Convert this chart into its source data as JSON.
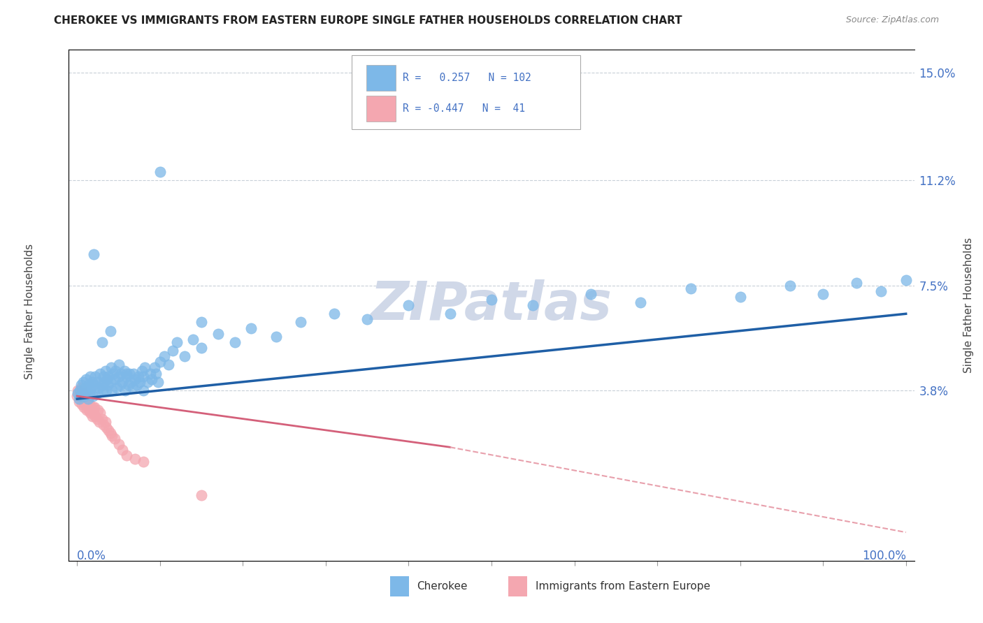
{
  "title": "CHEROKEE VS IMMIGRANTS FROM EASTERN EUROPE SINGLE FATHER HOUSEHOLDS CORRELATION CHART",
  "source": "Source: ZipAtlas.com",
  "ylabel": "Single Father Households",
  "ytick_vals": [
    0.0,
    0.038,
    0.075,
    0.112,
    0.15
  ],
  "ytick_labels": [
    "",
    "3.8%",
    "7.5%",
    "11.2%",
    "15.0%"
  ],
  "cherokee_color": "#7db8e8",
  "immigrants_color": "#f4a7b0",
  "cherokee_line_color": "#1f5fa6",
  "immigrants_line_solid_color": "#d4607a",
  "immigrants_line_dashed_color": "#e8a0ac",
  "label_color": "#4472c4",
  "watermark_color": "#d0d8e8",
  "cherokee_x": [
    0.001,
    0.002,
    0.003,
    0.004,
    0.005,
    0.006,
    0.007,
    0.008,
    0.009,
    0.01,
    0.011,
    0.012,
    0.013,
    0.014,
    0.015,
    0.016,
    0.017,
    0.018,
    0.019,
    0.02,
    0.022,
    0.024,
    0.025,
    0.026,
    0.028,
    0.03,
    0.031,
    0.032,
    0.033,
    0.034,
    0.035,
    0.036,
    0.037,
    0.038,
    0.04,
    0.041,
    0.042,
    0.044,
    0.045,
    0.046,
    0.048,
    0.05,
    0.052,
    0.053,
    0.055,
    0.057,
    0.058,
    0.06,
    0.062,
    0.063,
    0.065,
    0.067,
    0.068,
    0.07,
    0.072,
    0.074,
    0.076,
    0.078,
    0.08,
    0.082,
    0.085,
    0.088,
    0.09,
    0.093,
    0.095,
    0.098,
    0.1,
    0.105,
    0.11,
    0.115,
    0.12,
    0.13,
    0.14,
    0.15,
    0.17,
    0.19,
    0.21,
    0.24,
    0.27,
    0.31,
    0.35,
    0.4,
    0.45,
    0.5,
    0.55,
    0.62,
    0.68,
    0.74,
    0.8,
    0.86,
    0.9,
    0.94,
    0.97,
    1.0,
    0.02,
    0.03,
    0.04,
    0.05,
    0.06,
    0.08,
    0.1,
    0.15
  ],
  "cherokee_y": [
    0.037,
    0.035,
    0.038,
    0.036,
    0.04,
    0.037,
    0.041,
    0.038,
    0.036,
    0.039,
    0.042,
    0.038,
    0.035,
    0.04,
    0.037,
    0.043,
    0.039,
    0.041,
    0.036,
    0.04,
    0.043,
    0.037,
    0.041,
    0.039,
    0.044,
    0.04,
    0.038,
    0.043,
    0.041,
    0.045,
    0.038,
    0.042,
    0.04,
    0.043,
    0.041,
    0.046,
    0.038,
    0.044,
    0.042,
    0.045,
    0.039,
    0.043,
    0.04,
    0.044,
    0.041,
    0.045,
    0.038,
    0.043,
    0.04,
    0.044,
    0.041,
    0.039,
    0.044,
    0.042,
    0.04,
    0.043,
    0.041,
    0.045,
    0.043,
    0.046,
    0.041,
    0.044,
    0.042,
    0.046,
    0.044,
    0.041,
    0.048,
    0.05,
    0.047,
    0.052,
    0.055,
    0.05,
    0.056,
    0.053,
    0.058,
    0.055,
    0.06,
    0.057,
    0.062,
    0.065,
    0.063,
    0.068,
    0.065,
    0.07,
    0.068,
    0.072,
    0.069,
    0.074,
    0.071,
    0.075,
    0.072,
    0.076,
    0.073,
    0.077,
    0.086,
    0.055,
    0.059,
    0.047,
    0.044,
    0.038,
    0.115,
    0.062
  ],
  "immigrants_x": [
    0.0,
    0.001,
    0.002,
    0.003,
    0.004,
    0.005,
    0.006,
    0.007,
    0.008,
    0.009,
    0.01,
    0.011,
    0.012,
    0.013,
    0.014,
    0.015,
    0.016,
    0.017,
    0.018,
    0.019,
    0.02,
    0.021,
    0.022,
    0.024,
    0.025,
    0.027,
    0.028,
    0.03,
    0.032,
    0.034,
    0.035,
    0.038,
    0.04,
    0.042,
    0.045,
    0.05,
    0.055,
    0.06,
    0.07,
    0.08,
    0.15
  ],
  "immigrants_y": [
    0.036,
    0.038,
    0.034,
    0.037,
    0.035,
    0.039,
    0.033,
    0.037,
    0.032,
    0.036,
    0.033,
    0.035,
    0.031,
    0.034,
    0.031,
    0.033,
    0.03,
    0.032,
    0.029,
    0.032,
    0.03,
    0.032,
    0.029,
    0.028,
    0.031,
    0.027,
    0.03,
    0.028,
    0.026,
    0.027,
    0.025,
    0.024,
    0.023,
    0.022,
    0.021,
    0.019,
    0.017,
    0.015,
    0.014,
    0.013,
    0.001
  ],
  "cherokee_trendline": [
    0.0,
    1.0,
    0.035,
    0.065
  ],
  "immigrants_trendline_solid": [
    0.0,
    0.45,
    0.036,
    0.018
  ],
  "immigrants_trendline_dashed": [
    0.45,
    1.0,
    0.018,
    -0.012
  ]
}
